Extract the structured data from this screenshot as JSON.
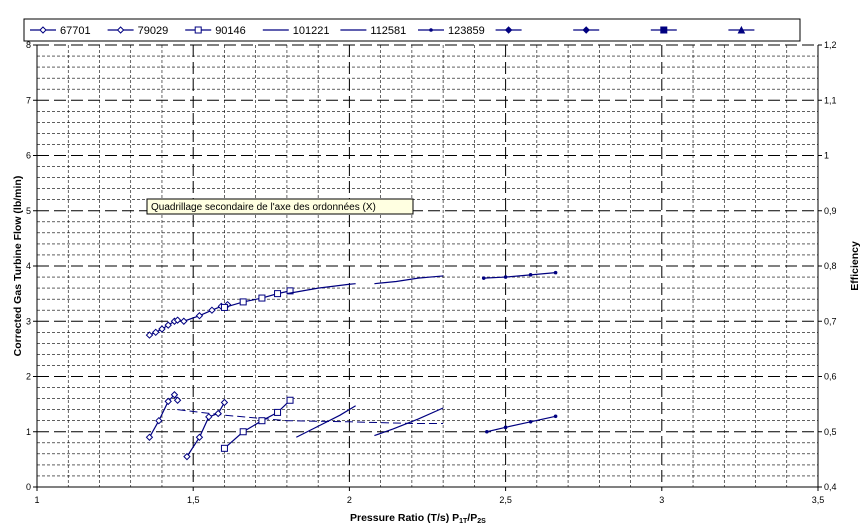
{
  "chart_data": {
    "type": "line",
    "title": "",
    "xlabel": "Pressure Ratio (T/s) P",
    "xlabel_sub1": "1T",
    "xlabel_mid": "/P",
    "xlabel_sub2": "2S",
    "ylabel": "Corrected Gas Turbine Flow (lb/min)",
    "y2label": "Efficiency",
    "xlim": [
      1,
      3.5
    ],
    "ylim": [
      0,
      8
    ],
    "y2lim": [
      0.4,
      1.2
    ],
    "x_ticks": [
      "1",
      "1,5",
      "2",
      "2,5",
      "3",
      "3,5"
    ],
    "x_tick_values": [
      1,
      1.5,
      2,
      2.5,
      3,
      3.5
    ],
    "y_ticks": [
      "0",
      "1",
      "2",
      "3",
      "4",
      "5",
      "6",
      "7",
      "8"
    ],
    "y_tick_values": [
      0,
      1,
      2,
      3,
      4,
      5,
      6,
      7,
      8
    ],
    "y2_ticks": [
      "0,4",
      "0,5",
      "0,6",
      "0,7",
      "0,8",
      "0,9",
      "1",
      "1,1",
      "1,2"
    ],
    "y2_tick_values": [
      0.4,
      0.5,
      0.6,
      0.7,
      0.8,
      0.9,
      1.0,
      1.1,
      1.2
    ],
    "grid": true,
    "legend_position": "top",
    "tooltip": "Quadrillage secondaire de l'axe des ordonnées (X)",
    "series_color": "#000080",
    "legend": [
      {
        "name": "67701",
        "marker": "diamond-open"
      },
      {
        "name": "79029",
        "marker": "diamond-open"
      },
      {
        "name": "90146",
        "marker": "square-open"
      },
      {
        "name": "101221",
        "marker": "none"
      },
      {
        "name": "112581",
        "marker": "none"
      },
      {
        "name": "123859",
        "marker": "dot"
      },
      {
        "name": "",
        "marker": "diamond"
      },
      {
        "name": "",
        "marker": "diamond"
      },
      {
        "name": "",
        "marker": "square"
      },
      {
        "name": "",
        "marker": "triangle"
      }
    ],
    "flow_series": [
      {
        "name": "67701",
        "marker": "diamond-open",
        "points": [
          [
            1.36,
            2.75
          ],
          [
            1.38,
            2.8
          ],
          [
            1.4,
            2.86
          ],
          [
            1.42,
            2.93
          ],
          [
            1.44,
            3.0
          ],
          [
            1.45,
            3.02
          ]
        ]
      },
      {
        "name": "79029",
        "marker": "diamond-open",
        "points": [
          [
            1.47,
            3.0
          ],
          [
            1.52,
            3.1
          ],
          [
            1.56,
            3.2
          ],
          [
            1.59,
            3.27
          ],
          [
            1.61,
            3.3
          ]
        ]
      },
      {
        "name": "90146",
        "marker": "square-open",
        "points": [
          [
            1.6,
            3.25
          ],
          [
            1.66,
            3.35
          ],
          [
            1.72,
            3.42
          ],
          [
            1.77,
            3.5
          ],
          [
            1.81,
            3.55
          ]
        ]
      },
      {
        "name": "101221",
        "marker": "none",
        "points": [
          [
            1.8,
            3.5
          ],
          [
            1.9,
            3.6
          ],
          [
            2.0,
            3.67
          ],
          [
            2.02,
            3.68
          ]
        ]
      },
      {
        "name": "112581",
        "marker": "none",
        "points": [
          [
            2.08,
            3.68
          ],
          [
            2.15,
            3.72
          ],
          [
            2.22,
            3.78
          ],
          [
            2.3,
            3.82
          ]
        ]
      },
      {
        "name": "123859",
        "marker": "dot",
        "points": [
          [
            2.43,
            3.78
          ],
          [
            2.5,
            3.8
          ],
          [
            2.58,
            3.84
          ],
          [
            2.66,
            3.88
          ]
        ]
      }
    ],
    "efficiency_series": [
      {
        "name": "67701",
        "marker": "diamond-open",
        "points": [
          [
            1.36,
            0.49
          ],
          [
            1.39,
            0.52
          ],
          [
            1.42,
            0.555
          ],
          [
            1.44,
            0.567
          ],
          [
            1.45,
            0.557
          ]
        ]
      },
      {
        "name": "79029",
        "marker": "diamond-open",
        "points": [
          [
            1.48,
            0.455
          ],
          [
            1.52,
            0.49
          ],
          [
            1.55,
            0.527
          ],
          [
            1.58,
            0.533
          ],
          [
            1.6,
            0.553
          ]
        ]
      },
      {
        "name": "90146",
        "marker": "square-open",
        "points": [
          [
            1.6,
            0.47
          ],
          [
            1.66,
            0.5
          ],
          [
            1.72,
            0.52
          ],
          [
            1.77,
            0.535
          ],
          [
            1.81,
            0.557
          ]
        ]
      },
      {
        "name": "101221",
        "marker": "none",
        "points": [
          [
            1.83,
            0.49
          ],
          [
            1.9,
            0.51
          ],
          [
            1.97,
            0.53
          ],
          [
            2.02,
            0.547
          ]
        ]
      },
      {
        "name": "112581",
        "marker": "none",
        "points": [
          [
            2.08,
            0.493
          ],
          [
            2.14,
            0.505
          ],
          [
            2.22,
            0.523
          ],
          [
            2.3,
            0.543
          ]
        ]
      },
      {
        "name": "123859",
        "marker": "dot",
        "points": [
          [
            2.44,
            0.5
          ],
          [
            2.5,
            0.508
          ],
          [
            2.58,
            0.518
          ],
          [
            2.66,
            0.528
          ]
        ]
      }
    ],
    "trend_line": [
      [
        1.45,
        0.54
      ],
      [
        1.6,
        0.53
      ],
      [
        1.8,
        0.52
      ],
      [
        2.0,
        0.518
      ],
      [
        2.2,
        0.515
      ],
      [
        2.3,
        0.515
      ]
    ]
  }
}
